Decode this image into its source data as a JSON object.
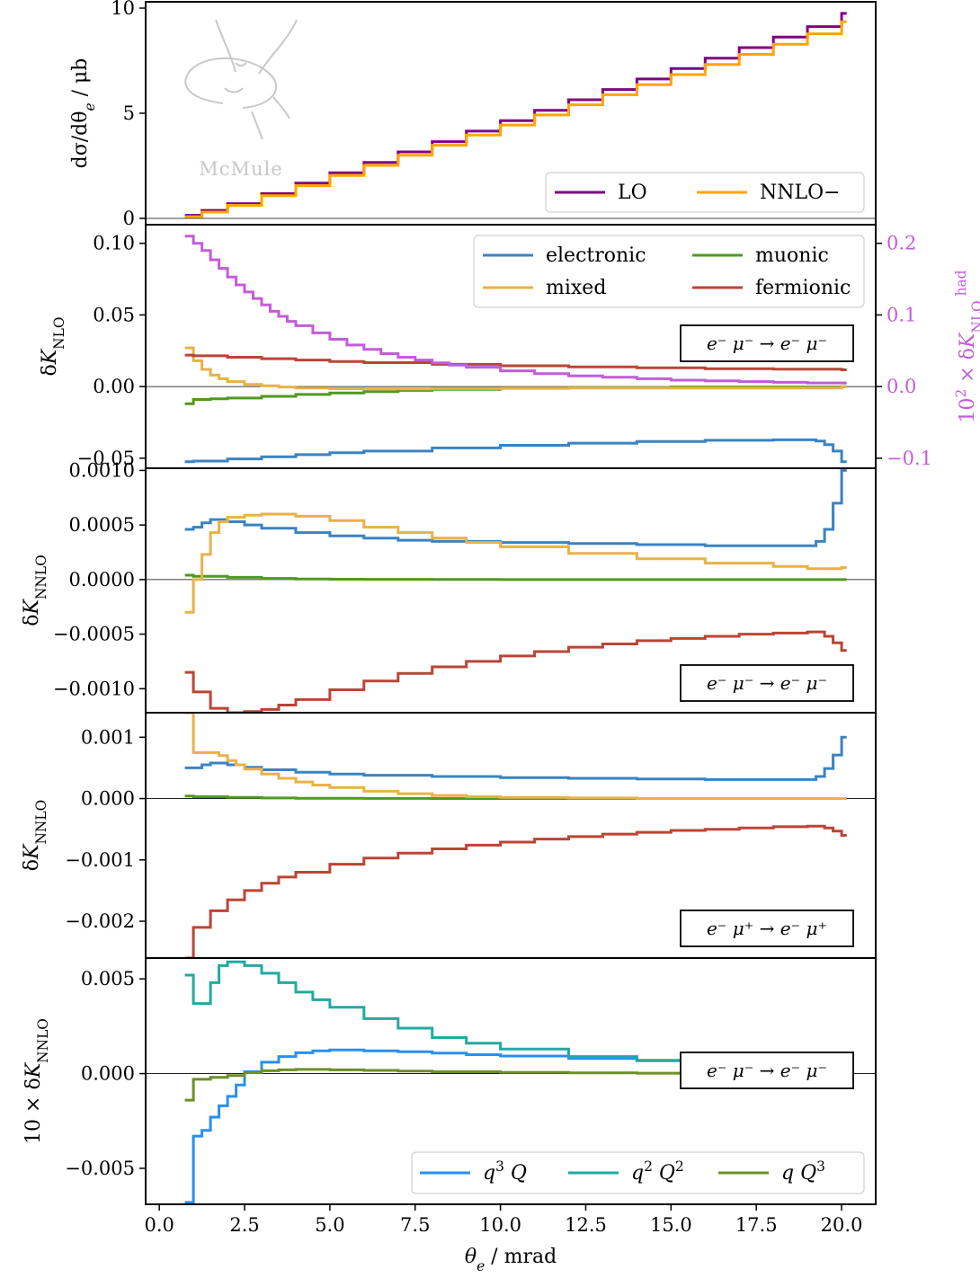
{
  "x_axis": {
    "label": "θe / mrad",
    "xlim": [
      -0.4,
      21.0
    ],
    "ticks": [
      0.0,
      2.5,
      5.0,
      7.5,
      10.0,
      12.5,
      15.0,
      17.5,
      20.0
    ],
    "tick_labels": [
      "0.0",
      "2.5",
      "5.0",
      "7.5",
      "10.0",
      "12.5",
      "15.0",
      "17.5",
      "20.0"
    ]
  },
  "logo": {
    "text": "McMule"
  },
  "colors": {
    "LO": "#800080",
    "NNLO": "#ffa500",
    "electronic": "#3b83c2",
    "muonic": "#4f9a1f",
    "mixed": "#e9b148",
    "fermionic": "#bb4536",
    "hadronic": "#c25dd8",
    "q3Q": "#2a8ff0",
    "q2Q2": "#22aaa0",
    "qQ3": "#6d8f25"
  },
  "chart_data": [
    {
      "type": "line",
      "id": "panel1",
      "ylabel": "dσ/dθe / μb",
      "ylim": [
        -0.3,
        10.3
      ],
      "yticks": [
        0,
        5,
        10
      ],
      "ytick_labels": [
        "0",
        "5",
        "10"
      ],
      "step": true,
      "legend": {
        "placement": "lower-right",
        "columns": 2
      },
      "series": [
        {
          "name": "LO",
          "color": "#800080",
          "x": [
            0.75,
            1.25,
            2.0,
            3.0,
            4.0,
            5.0,
            6.0,
            7.0,
            8.0,
            9.0,
            10.0,
            11.0,
            12.0,
            13.0,
            14.0,
            15.0,
            16.0,
            17.0,
            18.0,
            19.0,
            20.0
          ],
          "y": [
            0.15,
            0.38,
            0.7,
            1.18,
            1.68,
            2.17,
            2.66,
            3.16,
            3.65,
            4.15,
            4.65,
            5.14,
            5.64,
            6.13,
            6.63,
            7.13,
            7.62,
            8.12,
            8.62,
            9.12,
            9.75
          ]
        },
        {
          "name": "NNLO−",
          "color": "#ffa500",
          "x": [
            0.75,
            1.25,
            2.0,
            3.0,
            4.0,
            5.0,
            6.0,
            7.0,
            8.0,
            9.0,
            10.0,
            11.0,
            12.0,
            13.0,
            14.0,
            15.0,
            16.0,
            17.0,
            18.0,
            19.0,
            20.0
          ],
          "y": [
            0.08,
            0.3,
            0.62,
            1.08,
            1.56,
            2.04,
            2.52,
            3.0,
            3.48,
            3.96,
            4.44,
            4.92,
            5.4,
            5.88,
            6.36,
            6.84,
            7.32,
            7.8,
            8.28,
            8.78,
            9.35
          ]
        }
      ]
    },
    {
      "type": "line",
      "id": "panel2",
      "ylabel": "δK_NLO",
      "ylim": [
        -0.057,
        0.113
      ],
      "yticks": [
        -0.05,
        0.0,
        0.05,
        0.1
      ],
      "ytick_labels": [
        "−0.05",
        "0.00",
        "0.05",
        "0.10"
      ],
      "ylabel_right": "10² × δK_NLO^had",
      "ylim_right": [
        -0.114,
        0.226
      ],
      "yticks_right": [
        -0.1,
        0.0,
        0.1,
        0.2
      ],
      "ytick_labels_right": [
        "−0.1",
        "0.0",
        "0.1",
        "0.2"
      ],
      "step": true,
      "legend": {
        "placement": "top-right",
        "columns": 2
      },
      "process": "e⁻ μ⁻ → e⁻ μ⁻",
      "series": [
        {
          "name": "electronic",
          "color": "#3b83c2",
          "x": [
            0.75,
            1.0,
            2.0,
            3.0,
            4.0,
            5.0,
            6.0,
            8.0,
            10.0,
            12.0,
            14.0,
            16.0,
            18.0,
            19.0,
            19.25,
            19.5,
            19.75,
            20.0
          ],
          "y": [
            -0.0525,
            -0.052,
            -0.0505,
            -0.049,
            -0.0475,
            -0.0462,
            -0.045,
            -0.0428,
            -0.041,
            -0.0395,
            -0.0383,
            -0.0375,
            -0.0372,
            -0.0372,
            -0.038,
            -0.0405,
            -0.045,
            -0.0525
          ]
        },
        {
          "name": "muonic",
          "color": "#4f9a1f",
          "x": [
            0.75,
            1.0,
            1.5,
            2.0,
            3.0,
            4.0,
            5.0,
            6.0,
            7.0,
            8.0,
            10.0,
            12.0,
            15.0,
            20.0
          ],
          "y": [
            -0.012,
            -0.009,
            -0.0085,
            -0.008,
            -0.0068,
            -0.0055,
            -0.0045,
            -0.0035,
            -0.0027,
            -0.002,
            -0.0012,
            -0.0007,
            -0.0003,
            -0.0001
          ]
        },
        {
          "name": "mixed",
          "color": "#e9b148",
          "x": [
            0.75,
            1.0,
            1.25,
            1.5,
            1.75,
            2.0,
            2.5,
            3.0,
            3.5,
            4.0,
            5.0,
            6.0,
            7.0,
            8.0,
            10.0,
            20.0
          ],
          "y": [
            0.027,
            0.018,
            0.012,
            0.008,
            0.0055,
            0.0035,
            0.0015,
            0.0005,
            -0.0003,
            -0.001,
            -0.0015,
            -0.0017,
            -0.0016,
            -0.0014,
            -0.001,
            -0.0002
          ]
        },
        {
          "name": "fermionic",
          "color": "#bb4536",
          "x": [
            0.75,
            1.0,
            2.0,
            3.0,
            4.0,
            5.0,
            6.0,
            8.0,
            10.0,
            12.0,
            14.0,
            16.0,
            18.0,
            20.0
          ],
          "y": [
            0.022,
            0.0215,
            0.0205,
            0.0195,
            0.0185,
            0.0175,
            0.0167,
            0.0155,
            0.0145,
            0.0137,
            0.0131,
            0.0125,
            0.0121,
            0.0117
          ]
        },
        {
          "name": "hadronic",
          "axis": "right",
          "color": "#c25dd8",
          "x": [
            0.75,
            1.0,
            1.25,
            1.5,
            1.75,
            2.0,
            2.25,
            2.5,
            2.75,
            3.0,
            3.25,
            3.5,
            3.75,
            4.0,
            4.5,
            5.0,
            5.5,
            6.0,
            6.5,
            7.0,
            7.5,
            8.0,
            8.5,
            9.0,
            10.0,
            11.0,
            12.0,
            13.0,
            14.0,
            15.0,
            16.0,
            17.0,
            18.0,
            19.0,
            20.0
          ],
          "y": [
            0.21,
            0.2,
            0.19,
            0.177,
            0.165,
            0.153,
            0.142,
            0.132,
            0.123,
            0.114,
            0.105,
            0.098,
            0.091,
            0.085,
            0.075,
            0.066,
            0.058,
            0.052,
            0.046,
            0.041,
            0.037,
            0.033,
            0.03,
            0.027,
            0.022,
            0.018,
            0.015,
            0.013,
            0.011,
            0.009,
            0.008,
            0.007,
            0.006,
            0.005,
            0.005
          ]
        }
      ]
    },
    {
      "type": "line",
      "id": "panel3",
      "ylabel": "δK_NNLO",
      "ylim": [
        -0.00122,
        0.00102
      ],
      "yticks": [
        -0.001,
        -0.0005,
        0.0,
        0.0005,
        0.001
      ],
      "ytick_labels": [
        "−0.0010",
        "−0.0005",
        "0.0000",
        "0.0005",
        "0.0010"
      ],
      "step": true,
      "process": "e⁻ μ⁻ → e⁻ μ⁻",
      "series": [
        {
          "name": "electronic",
          "color": "#3b83c2",
          "x": [
            0.75,
            1.0,
            1.25,
            1.5,
            2.0,
            2.5,
            3.0,
            4.0,
            5.0,
            6.0,
            7.0,
            8.0,
            10.0,
            12.0,
            14.0,
            16.0,
            18.0,
            19.0,
            19.25,
            19.5,
            19.75,
            20.0
          ],
          "y": [
            0.00046,
            0.00048,
            0.00052,
            0.00055,
            0.00053,
            0.0005,
            0.00047,
            0.00043,
            0.0004,
            0.00038,
            0.00036,
            0.00035,
            0.00034,
            0.00033,
            0.00032,
            0.00031,
            0.00031,
            0.00031,
            0.00035,
            0.00046,
            0.0007,
            0.001
          ]
        },
        {
          "name": "muonic",
          "color": "#4f9a1f",
          "x": [
            0.75,
            1.0,
            1.5,
            2.0,
            2.5,
            3.0,
            4.0,
            5.0,
            6.0,
            8.0,
            10.0,
            20.0
          ],
          "y": [
            4e-05,
            3e-05,
            3e-05,
            2e-05,
            2e-05,
            1e-05,
            5e-06,
            3e-06,
            2e-06,
            1e-06,
            0.0,
            0.0
          ]
        },
        {
          "name": "mixed",
          "color": "#e9b148",
          "x": [
            0.75,
            1.0,
            1.25,
            1.5,
            1.75,
            2.0,
            2.5,
            3.0,
            3.5,
            4.0,
            5.0,
            6.0,
            7.0,
            8.0,
            9.0,
            10.0,
            12.0,
            14.0,
            16.0,
            18.0,
            19.0,
            20.0
          ],
          "y": [
            -0.0003,
            0.0,
            0.00023,
            0.00043,
            0.00053,
            0.00057,
            0.00059,
            0.0006,
            0.0006,
            0.00058,
            0.00054,
            0.00048,
            0.00043,
            0.00038,
            0.00034,
            0.0003,
            0.00024,
            0.00019,
            0.00015,
            0.00012,
            0.0001,
            0.00011
          ]
        },
        {
          "name": "fermionic",
          "color": "#bb4536",
          "x": [
            0.75,
            1.0,
            1.5,
            2.0,
            2.5,
            3.0,
            3.5,
            4.0,
            5.0,
            6.0,
            7.0,
            8.0,
            9.0,
            10.0,
            11.0,
            12.0,
            13.0,
            14.0,
            15.0,
            16.0,
            17.0,
            18.0,
            19.0,
            19.5,
            19.75,
            20.0
          ],
          "y": [
            -0.00085,
            -0.00103,
            -0.00118,
            -0.00122,
            -0.00121,
            -0.00119,
            -0.00115,
            -0.0011,
            -0.00101,
            -0.00093,
            -0.00086,
            -0.0008,
            -0.00075,
            -0.0007,
            -0.00066,
            -0.00062,
            -0.00059,
            -0.00056,
            -0.00054,
            -0.00052,
            -0.0005,
            -0.00049,
            -0.00048,
            -0.00052,
            -0.00058,
            -0.00065
          ]
        }
      ]
    },
    {
      "type": "line",
      "id": "panel4",
      "ylabel": "δK_NNLO",
      "ylim": [
        -0.0026,
        0.0014
      ],
      "yticks": [
        -0.002,
        -0.001,
        0.0,
        0.001
      ],
      "ytick_labels": [
        "−0.002",
        "−0.001",
        "0.000",
        "0.001"
      ],
      "step": true,
      "process": "e⁻ μ⁺ → e⁻ μ⁺",
      "series": [
        {
          "name": "electronic",
          "color": "#3b83c2",
          "x": [
            0.75,
            1.0,
            1.25,
            1.5,
            2.0,
            2.5,
            3.0,
            4.0,
            5.0,
            6.0,
            8.0,
            10.0,
            12.0,
            14.0,
            16.0,
            18.0,
            19.0,
            19.25,
            19.5,
            19.75,
            20.0
          ],
          "y": [
            0.0005,
            0.0005,
            0.00055,
            0.00058,
            0.00055,
            0.00051,
            0.00047,
            0.00043,
            0.0004,
            0.00038,
            0.00036,
            0.00034,
            0.00033,
            0.00032,
            0.00031,
            0.00031,
            0.00031,
            0.00036,
            0.00049,
            0.00071,
            0.001
          ]
        },
        {
          "name": "muonic",
          "color": "#4f9a1f",
          "x": [
            0.75,
            1.0,
            2.0,
            3.0,
            4.0,
            6.0,
            8.0,
            20.0
          ],
          "y": [
            4e-05,
            3e-05,
            2e-05,
            1e-05,
            5e-06,
            2e-06,
            1e-06,
            0.0
          ]
        },
        {
          "name": "mixed",
          "color": "#e9b148",
          "x": [
            0.75,
            1.0,
            1.25,
            1.5,
            1.75,
            2.0,
            2.25,
            2.5,
            3.0,
            3.5,
            4.0,
            4.5,
            5.0,
            6.0,
            7.0,
            8.0,
            9.0,
            10.0,
            12.0,
            14.0,
            20.0
          ],
          "y": [
            0.0014,
            0.00075,
            0.00075,
            0.00075,
            0.0007,
            0.00062,
            0.00055,
            0.00048,
            0.0004,
            0.00033,
            0.00027,
            0.00022,
            0.00018,
            0.00012,
            8e-05,
            5e-05,
            3e-05,
            2e-05,
            1e-05,
            0.0,
            0.0
          ]
        },
        {
          "name": "fermionic",
          "color": "#bb4536",
          "x": [
            0.75,
            1.0,
            1.5,
            2.0,
            2.5,
            3.0,
            3.5,
            4.0,
            5.0,
            6.0,
            7.0,
            8.0,
            9.0,
            10.0,
            11.0,
            12.0,
            13.0,
            14.0,
            15.0,
            16.0,
            17.0,
            18.0,
            19.0,
            19.5,
            19.75,
            20.0
          ],
          "y": [
            -0.0026,
            -0.0021,
            -0.00183,
            -0.00165,
            -0.0015,
            -0.00138,
            -0.00128,
            -0.0012,
            -0.00107,
            -0.00097,
            -0.00089,
            -0.00082,
            -0.00076,
            -0.00071,
            -0.00066,
            -0.00062,
            -0.00058,
            -0.00055,
            -0.00052,
            -0.0005,
            -0.00048,
            -0.00046,
            -0.00045,
            -0.00048,
            -0.00053,
            -0.0006
          ]
        }
      ]
    },
    {
      "type": "line",
      "id": "panel5",
      "ylabel": "10 × δK_NNLO",
      "ylim": [
        -0.0069,
        0.0061
      ],
      "yticks": [
        -0.005,
        0.0,
        0.005
      ],
      "ytick_labels": [
        "−0.005",
        "0.000",
        "0.005"
      ],
      "step": true,
      "legend": {
        "placement": "lower-right",
        "columns": 3
      },
      "process": "e⁻ μ⁻ → e⁻ μ⁻",
      "series": [
        {
          "name": "q³ Q",
          "color": "#2a8ff0",
          "x": [
            0.75,
            1.0,
            1.25,
            1.5,
            1.75,
            2.0,
            2.25,
            2.5,
            3.0,
            3.5,
            4.0,
            4.5,
            5.0,
            5.5,
            6.0,
            7.0,
            8.0,
            9.0,
            10.0,
            12.0,
            14.0,
            16.0,
            18.0,
            19.0,
            20.0
          ],
          "y": [
            -0.0068,
            -0.0033,
            -0.003,
            -0.0023,
            -0.0017,
            -0.0012,
            -0.0006,
            0.0001,
            0.0006,
            0.0009,
            0.0011,
            0.0012,
            0.00125,
            0.00125,
            0.0012,
            0.00115,
            0.00108,
            0.001,
            0.00093,
            0.0008,
            0.00068,
            0.00058,
            0.00052,
            0.00052,
            0.0006
          ]
        },
        {
          "name": "q² Q²",
          "color": "#22aaa0",
          "x": [
            0.75,
            1.0,
            1.5,
            1.75,
            2.0,
            2.25,
            2.5,
            3.0,
            3.5,
            4.0,
            4.5,
            5.0,
            6.0,
            7.0,
            8.0,
            9.0,
            10.0,
            12.0,
            14.0,
            16.0,
            18.0,
            19.0,
            20.0
          ],
          "y": [
            0.0052,
            0.0037,
            0.0048,
            0.0057,
            0.0059,
            0.0059,
            0.0057,
            0.0053,
            0.0048,
            0.0043,
            0.0039,
            0.0035,
            0.0029,
            0.0024,
            0.0019,
            0.0016,
            0.0013,
            0.0009,
            0.0007,
            0.0006,
            0.0005,
            0.0005,
            0.0006
          ]
        },
        {
          "name": "q Q³",
          "color": "#6d8f25",
          "x": [
            0.75,
            1.0,
            1.5,
            2.0,
            2.5,
            3.0,
            3.5,
            4.0,
            5.0,
            6.0,
            7.0,
            8.0,
            10.0,
            12.0,
            14.0,
            16.0,
            18.0,
            20.0
          ],
          "y": [
            -0.0014,
            -0.0003,
            -0.0002,
            -0.0001,
            5e-05,
            0.00015,
            0.0002,
            0.00022,
            0.0002,
            0.00017,
            0.00013,
            0.0001,
            6e-05,
            4e-05,
            2e-05,
            1e-05,
            0.0,
            0.0
          ]
        }
      ]
    }
  ]
}
